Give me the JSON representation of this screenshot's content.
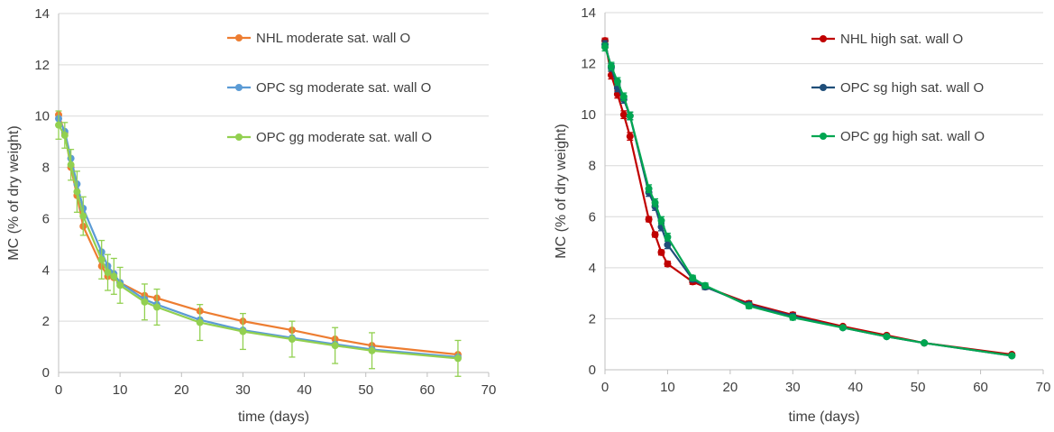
{
  "chart_data": [
    {
      "type": "line",
      "title": "",
      "xlabel": "time (days)",
      "ylabel": "MC (% of dry weight)",
      "xlim": [
        0,
        70
      ],
      "ylim": [
        0,
        14
      ],
      "x_ticks": [
        "0",
        "10",
        "20",
        "30",
        "40",
        "50",
        "60",
        "70"
      ],
      "y_ticks": [
        "0",
        "2",
        "4",
        "6",
        "8",
        "10",
        "12",
        "14"
      ],
      "grid": "horizontal",
      "legend_position": "top-right",
      "x": [
        0,
        1,
        2,
        3,
        4,
        7,
        8,
        9,
        10,
        14,
        16,
        23,
        30,
        38,
        45,
        51,
        65
      ],
      "series": [
        {
          "name": "NHL moderate sat. wall O",
          "color": "#ED7D31",
          "values": [
            10.05,
            9.35,
            8.0,
            6.9,
            5.7,
            4.15,
            3.75,
            3.7,
            3.5,
            3.0,
            2.9,
            2.4,
            2.0,
            1.65,
            1.3,
            1.05,
            0.7
          ],
          "errors": [
            0.65,
            0.7,
            0.55,
            0.6,
            0.6,
            0.45,
            0.35,
            0.35,
            0.3,
            0.3,
            0.3,
            0.3,
            0.25,
            0.25,
            0.2,
            0.2,
            0.2
          ]
        },
        {
          "name": "OPC sg moderate sat. wall O",
          "color": "#5B9BD5",
          "values": [
            9.9,
            9.4,
            8.35,
            7.35,
            6.4,
            4.7,
            4.15,
            3.85,
            3.5,
            2.85,
            2.65,
            2.05,
            1.65,
            1.35,
            1.1,
            0.9,
            0.6
          ],
          "errors": [
            0.35,
            0.35,
            0.35,
            0.35,
            0.35,
            0.3,
            0.3,
            0.3,
            0.3,
            0.3,
            0.25,
            0.25,
            0.2,
            0.2,
            0.2,
            0.2,
            0.2
          ]
        },
        {
          "name": "OPC gg moderate sat. wall O",
          "color": "#92D050",
          "values": [
            9.65,
            9.25,
            8.1,
            7.05,
            6.1,
            4.4,
            3.9,
            3.75,
            3.4,
            2.75,
            2.55,
            1.95,
            1.6,
            1.3,
            1.05,
            0.85,
            0.55
          ],
          "errors": [
            0.55,
            0.5,
            0.6,
            0.8,
            0.75,
            0.75,
            0.7,
            0.7,
            0.7,
            0.7,
            0.7,
            0.7,
            0.7,
            0.7,
            0.7,
            0.7,
            0.7
          ]
        }
      ]
    },
    {
      "type": "line",
      "title": "",
      "xlabel": "time (days)",
      "ylabel": "MC (% of dry weight)",
      "xlim": [
        0,
        70
      ],
      "ylim": [
        0,
        14
      ],
      "x_ticks": [
        "0",
        "10",
        "20",
        "30",
        "40",
        "50",
        "60",
        "70"
      ],
      "y_ticks": [
        "0",
        "2",
        "4",
        "6",
        "8",
        "10",
        "12",
        "14"
      ],
      "grid": "horizontal",
      "legend_position": "top-right",
      "x": [
        0,
        1,
        2,
        3,
        4,
        7,
        8,
        9,
        10,
        14,
        16,
        23,
        30,
        38,
        45,
        51,
        65
      ],
      "series": [
        {
          "name": "NHL high sat. wall O",
          "color": "#C00000",
          "values": [
            12.9,
            11.55,
            10.8,
            10.0,
            9.15,
            5.9,
            5.3,
            4.6,
            4.15,
            3.45,
            3.25,
            2.6,
            2.15,
            1.7,
            1.35,
            1.05,
            0.6
          ],
          "errors": [
            0.1,
            0.15,
            0.15,
            0.15,
            0.15,
            0.1,
            0.1,
            0.1,
            0.1,
            0.1,
            0.1,
            0.1,
            0.1,
            0.05,
            0.05,
            0.05,
            0.05
          ]
        },
        {
          "name": "OPC sg high sat. wall O",
          "color": "#1F4E79",
          "values": [
            12.75,
            11.85,
            11.05,
            10.6,
            9.95,
            6.95,
            6.4,
            5.6,
            4.9,
            3.55,
            3.25,
            2.55,
            2.1,
            1.65,
            1.3,
            1.05,
            0.55
          ],
          "errors": [
            0.15,
            0.15,
            0.15,
            0.15,
            0.15,
            0.15,
            0.15,
            0.15,
            0.15,
            0.1,
            0.1,
            0.1,
            0.1,
            0.05,
            0.05,
            0.05,
            0.05
          ]
        },
        {
          "name": "OPC gg high sat. wall O",
          "color": "#00A651",
          "values": [
            12.65,
            11.9,
            11.3,
            10.7,
            9.95,
            7.1,
            6.55,
            5.85,
            5.2,
            3.6,
            3.3,
            2.5,
            2.05,
            1.65,
            1.3,
            1.05,
            0.55
          ],
          "errors": [
            0.15,
            0.15,
            0.15,
            0.15,
            0.15,
            0.15,
            0.15,
            0.15,
            0.15,
            0.1,
            0.1,
            0.1,
            0.1,
            0.05,
            0.05,
            0.05,
            0.05
          ]
        }
      ]
    }
  ]
}
